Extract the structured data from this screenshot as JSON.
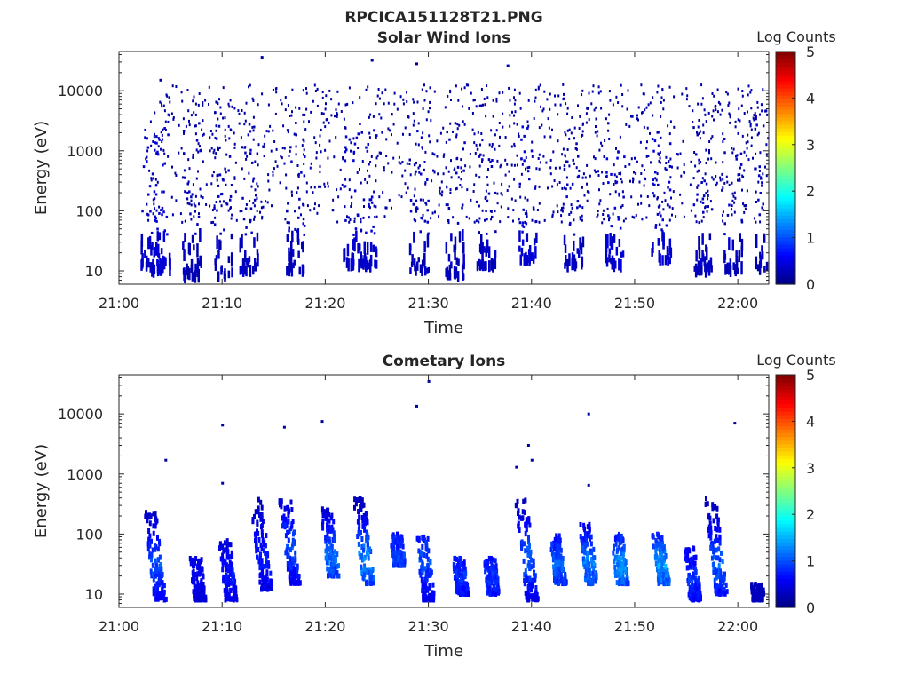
{
  "figure_title": "RPCICA151128T21.PNG",
  "chart_data": [
    {
      "type": "heatmap",
      "title": "Solar Wind Ions",
      "xlabel": "Time",
      "ylabel": "Energy (eV)",
      "yscale": "log",
      "ylim": [
        6,
        45000
      ],
      "xlim": [
        "21:00",
        "22:03"
      ],
      "xticks": [
        "21:00",
        "21:10",
        "21:20",
        "21:30",
        "21:40",
        "21:50",
        "22:00"
      ],
      "yticks": [
        {
          "value": 10,
          "label": "10"
        },
        {
          "value": 100,
          "label": "100"
        },
        {
          "value": 1000,
          "label": "1000"
        },
        {
          "value": 10000,
          "label": "10000"
        }
      ],
      "colorbar": {
        "label": "Log Counts",
        "range": [
          0,
          5
        ],
        "ticks": [
          "0",
          "1",
          "2",
          "3",
          "4",
          "5"
        ],
        "colormap": "jet"
      },
      "data_start": "21:02:30",
      "data_end": "22:03:00",
      "dominant_log_counts": 0.2,
      "sparse_points": [
        {
          "time": "21:04:00",
          "energy": 15000
        },
        {
          "time": "21:13:50",
          "energy": 36000
        },
        {
          "time": "21:24:30",
          "energy": 32000
        },
        {
          "time": "21:28:50",
          "energy": 28000
        },
        {
          "time": "21:37:40",
          "energy": 26000
        }
      ],
      "events": [
        {
          "time": "21:03:00",
          "energy_min": 10,
          "energy_max": 2500,
          "log_counts": 0.3
        },
        {
          "time": "21:04:00",
          "energy_min": 10,
          "energy_max": 6000,
          "log_counts": 0.3
        },
        {
          "time": "21:07:00",
          "energy_min": 8,
          "energy_max": 3000,
          "log_counts": 0.2
        },
        {
          "time": "21:10:00",
          "energy_min": 8,
          "energy_max": 3000,
          "log_counts": 0.2
        },
        {
          "time": "21:12:30",
          "energy_min": 10,
          "energy_max": 3000,
          "log_counts": 0.2
        },
        {
          "time": "21:17:00",
          "energy_min": 10,
          "energy_max": 3000,
          "log_counts": 0.2
        },
        {
          "time": "21:22:30",
          "energy_min": 12,
          "energy_max": 3000,
          "log_counts": 0.3
        },
        {
          "time": "21:24:00",
          "energy_min": 12,
          "energy_max": 4000,
          "log_counts": 0.3
        },
        {
          "time": "21:29:00",
          "energy_min": 10,
          "energy_max": 3000,
          "log_counts": 0.2
        },
        {
          "time": "21:32:30",
          "energy_min": 8,
          "energy_max": 3000,
          "log_counts": 0.2
        },
        {
          "time": "21:35:30",
          "energy_min": 12,
          "energy_max": 3000,
          "log_counts": 0.2
        },
        {
          "time": "21:39:30",
          "energy_min": 15,
          "energy_max": 3000,
          "log_counts": 0.3
        },
        {
          "time": "21:44:00",
          "energy_min": 12,
          "energy_max": 3000,
          "log_counts": 0.2
        },
        {
          "time": "21:48:00",
          "energy_min": 12,
          "energy_max": 3000,
          "log_counts": 0.3
        },
        {
          "time": "21:52:30",
          "energy_min": 15,
          "energy_max": 3000,
          "log_counts": 0.3
        },
        {
          "time": "21:56:30",
          "energy_min": 10,
          "energy_max": 3000,
          "log_counts": 0.2
        },
        {
          "time": "21:59:30",
          "energy_min": 10,
          "energy_max": 3000,
          "log_counts": 0.2
        },
        {
          "time": "22:02:30",
          "energy_min": 10,
          "energy_max": 6000,
          "log_counts": 0.2
        }
      ]
    },
    {
      "type": "heatmap",
      "title": "Cometary Ions",
      "xlabel": "Time",
      "ylabel": "Energy (eV)",
      "yscale": "log",
      "ylim": [
        6,
        45000
      ],
      "xlim": [
        "21:00",
        "22:03"
      ],
      "xticks": [
        "21:00",
        "21:10",
        "21:20",
        "21:30",
        "21:40",
        "21:50",
        "22:00"
      ],
      "yticks": [
        {
          "value": 10,
          "label": "10"
        },
        {
          "value": 100,
          "label": "100"
        },
        {
          "value": 1000,
          "label": "1000"
        },
        {
          "value": 10000,
          "label": "10000"
        }
      ],
      "colorbar": {
        "label": "Log Counts",
        "range": [
          0,
          5
        ],
        "ticks": [
          "0",
          "1",
          "2",
          "3",
          "4",
          "5"
        ],
        "colormap": "jet"
      },
      "sparse_points": [
        {
          "time": "21:04:30",
          "energy": 1700
        },
        {
          "time": "21:10:00",
          "energy": 6500
        },
        {
          "time": "21:10:00",
          "energy": 700
        },
        {
          "time": "21:16:00",
          "energy": 6000
        },
        {
          "time": "21:19:40",
          "energy": 7500
        },
        {
          "time": "21:28:50",
          "energy": 13500
        },
        {
          "time": "21:30:00",
          "energy": 35000
        },
        {
          "time": "21:38:30",
          "energy": 1300
        },
        {
          "time": "21:39:40",
          "energy": 3000
        },
        {
          "time": "21:40:00",
          "energy": 1700
        },
        {
          "time": "21:45:30",
          "energy": 10000
        },
        {
          "time": "21:45:30",
          "energy": 650
        },
        {
          "time": "21:59:40",
          "energy": 7000
        }
      ],
      "events": [
        {
          "time": "21:03:30",
          "energy_min": 8,
          "energy_max": 250,
          "peak_energy": 30,
          "peak_log_counts": 1.2
        },
        {
          "time": "21:07:30",
          "energy_min": 8,
          "energy_max": 40,
          "peak_energy": 20,
          "peak_log_counts": 0.6
        },
        {
          "time": "21:10:30",
          "energy_min": 8,
          "energy_max": 80,
          "peak_energy": 20,
          "peak_log_counts": 0.8
        },
        {
          "time": "21:13:50",
          "energy_min": 12,
          "energy_max": 400,
          "peak_energy": 40,
          "peak_log_counts": 0.9
        },
        {
          "time": "21:16:30",
          "energy_min": 15,
          "energy_max": 400,
          "peak_energy": 60,
          "peak_log_counts": 1.2
        },
        {
          "time": "21:20:30",
          "energy_min": 20,
          "energy_max": 300,
          "peak_energy": 40,
          "peak_log_counts": 1.4
        },
        {
          "time": "21:23:50",
          "energy_min": 15,
          "energy_max": 400,
          "peak_energy": 35,
          "peak_log_counts": 1.6
        },
        {
          "time": "21:27:00",
          "energy_min": 30,
          "energy_max": 100,
          "peak_energy": 40,
          "peak_log_counts": 1.1
        },
        {
          "time": "21:29:30",
          "energy_min": 8,
          "energy_max": 90,
          "peak_energy": 35,
          "peak_log_counts": 1.2
        },
        {
          "time": "21:33:00",
          "energy_min": 10,
          "energy_max": 40,
          "peak_energy": 20,
          "peak_log_counts": 1.0
        },
        {
          "time": "21:36:00",
          "energy_min": 10,
          "energy_max": 40,
          "peak_energy": 20,
          "peak_log_counts": 1.0
        },
        {
          "time": "21:39:30",
          "energy_min": 8,
          "energy_max": 400,
          "peak_energy": 40,
          "peak_log_counts": 1.3
        },
        {
          "time": "21:42:30",
          "energy_min": 15,
          "energy_max": 100,
          "peak_energy": 30,
          "peak_log_counts": 1.3
        },
        {
          "time": "21:45:30",
          "energy_min": 15,
          "energy_max": 150,
          "peak_energy": 30,
          "peak_log_counts": 1.5
        },
        {
          "time": "21:48:30",
          "energy_min": 15,
          "energy_max": 100,
          "peak_energy": 30,
          "peak_log_counts": 1.6
        },
        {
          "time": "21:52:30",
          "energy_min": 15,
          "energy_max": 100,
          "peak_energy": 30,
          "peak_log_counts": 1.7
        },
        {
          "time": "21:55:30",
          "energy_min": 8,
          "energy_max": 60,
          "peak_energy": 20,
          "peak_log_counts": 1.0
        },
        {
          "time": "21:58:00",
          "energy_min": 10,
          "energy_max": 400,
          "peak_energy": 30,
          "peak_log_counts": 1.3
        },
        {
          "time": "22:01:50",
          "energy_min": 8,
          "energy_max": 15,
          "peak_energy": 10,
          "peak_log_counts": 0.3
        }
      ]
    }
  ]
}
